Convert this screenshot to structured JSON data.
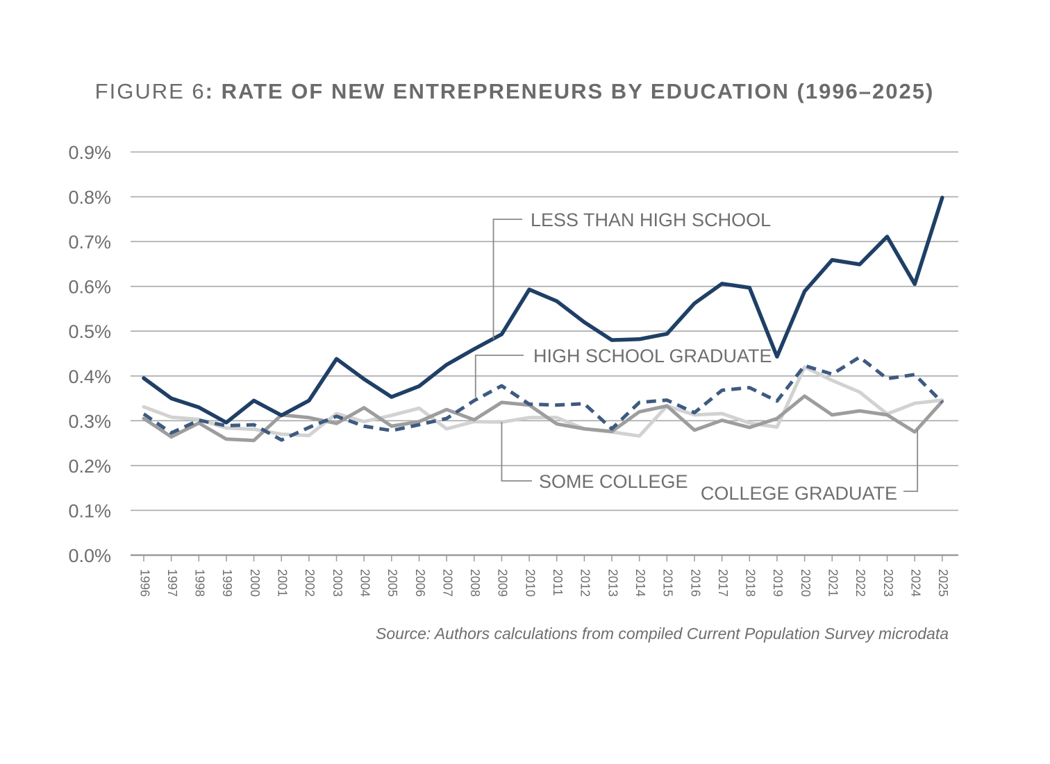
{
  "figure": {
    "label": "FIGURE 6",
    "separator": ": ",
    "title": "RATE OF NEW ENTREPRENEURS BY EDUCATION (1996–2025)"
  },
  "source_note": "Source: Authors calculations from compiled Current Population Survey microdata",
  "colors": {
    "less_than_high_school": "#1f3f66",
    "high_school_graduate": "#3e5a80",
    "some_college": "#d2d2d2",
    "college_graduate": "#9d9d9d",
    "grid": "#a9a9a9",
    "text": "#6e6e6e"
  },
  "chart_data": {
    "type": "line",
    "title": "RATE OF NEW ENTREPRENEURS BY EDUCATION (1996–2025)",
    "xlabel": "",
    "ylabel": "",
    "ylim": [
      0,
      0.9
    ],
    "yticks": [
      "0.0%",
      "0.1%",
      "0.2%",
      "0.3%",
      "0.4%",
      "0.5%",
      "0.6%",
      "0.7%",
      "0.8%",
      "0.9%"
    ],
    "grid": true,
    "categories": [
      "1996",
      "1997",
      "1998",
      "1999",
      "2000",
      "2001",
      "2002",
      "2003",
      "2004",
      "2005",
      "2006",
      "2007",
      "2008",
      "2009",
      "2010",
      "2011",
      "2012",
      "2013",
      "2014",
      "2015",
      "2016",
      "2017",
      "2018",
      "2019",
      "2020",
      "2021",
      "2022",
      "2023",
      "2024",
      "2025"
    ],
    "series": [
      {
        "name": "LESS THAN HIGH SCHOOL",
        "style": "solid",
        "values": [
          0.395,
          0.35,
          0.33,
          0.296,
          0.345,
          0.312,
          0.345,
          0.438,
          0.393,
          0.353,
          0.377,
          0.425,
          0.46,
          0.493,
          0.593,
          0.567,
          0.52,
          0.48,
          0.482,
          0.494,
          0.562,
          0.606,
          0.597,
          0.443,
          0.589,
          0.659,
          0.649,
          0.711,
          0.605,
          0.798
        ]
      },
      {
        "name": "HIGH SCHOOL GRADUATE",
        "style": "dashed",
        "values": [
          0.315,
          0.273,
          0.301,
          0.289,
          0.291,
          0.257,
          0.285,
          0.31,
          0.288,
          0.278,
          0.291,
          0.305,
          0.345,
          0.378,
          0.337,
          0.335,
          0.338,
          0.282,
          0.341,
          0.346,
          0.318,
          0.368,
          0.374,
          0.344,
          0.423,
          0.404,
          0.442,
          0.394,
          0.403,
          0.341
        ]
      },
      {
        "name": "SOME COLLEGE",
        "style": "solid",
        "values": [
          0.331,
          0.308,
          0.303,
          0.284,
          0.281,
          0.27,
          0.267,
          0.316,
          0.298,
          0.312,
          0.328,
          0.282,
          0.298,
          0.297,
          0.307,
          0.307,
          0.282,
          0.275,
          0.266,
          0.333,
          0.313,
          0.316,
          0.295,
          0.286,
          0.42,
          0.39,
          0.364,
          0.315,
          0.339,
          0.346
        ]
      },
      {
        "name": "COLLEGE GRADUATE",
        "style": "solid",
        "values": [
          0.305,
          0.264,
          0.295,
          0.259,
          0.256,
          0.313,
          0.307,
          0.294,
          0.329,
          0.288,
          0.298,
          0.325,
          0.302,
          0.341,
          0.335,
          0.293,
          0.282,
          0.276,
          0.32,
          0.333,
          0.279,
          0.301,
          0.285,
          0.305,
          0.355,
          0.313,
          0.322,
          0.313,
          0.275,
          0.343
        ]
      }
    ]
  }
}
